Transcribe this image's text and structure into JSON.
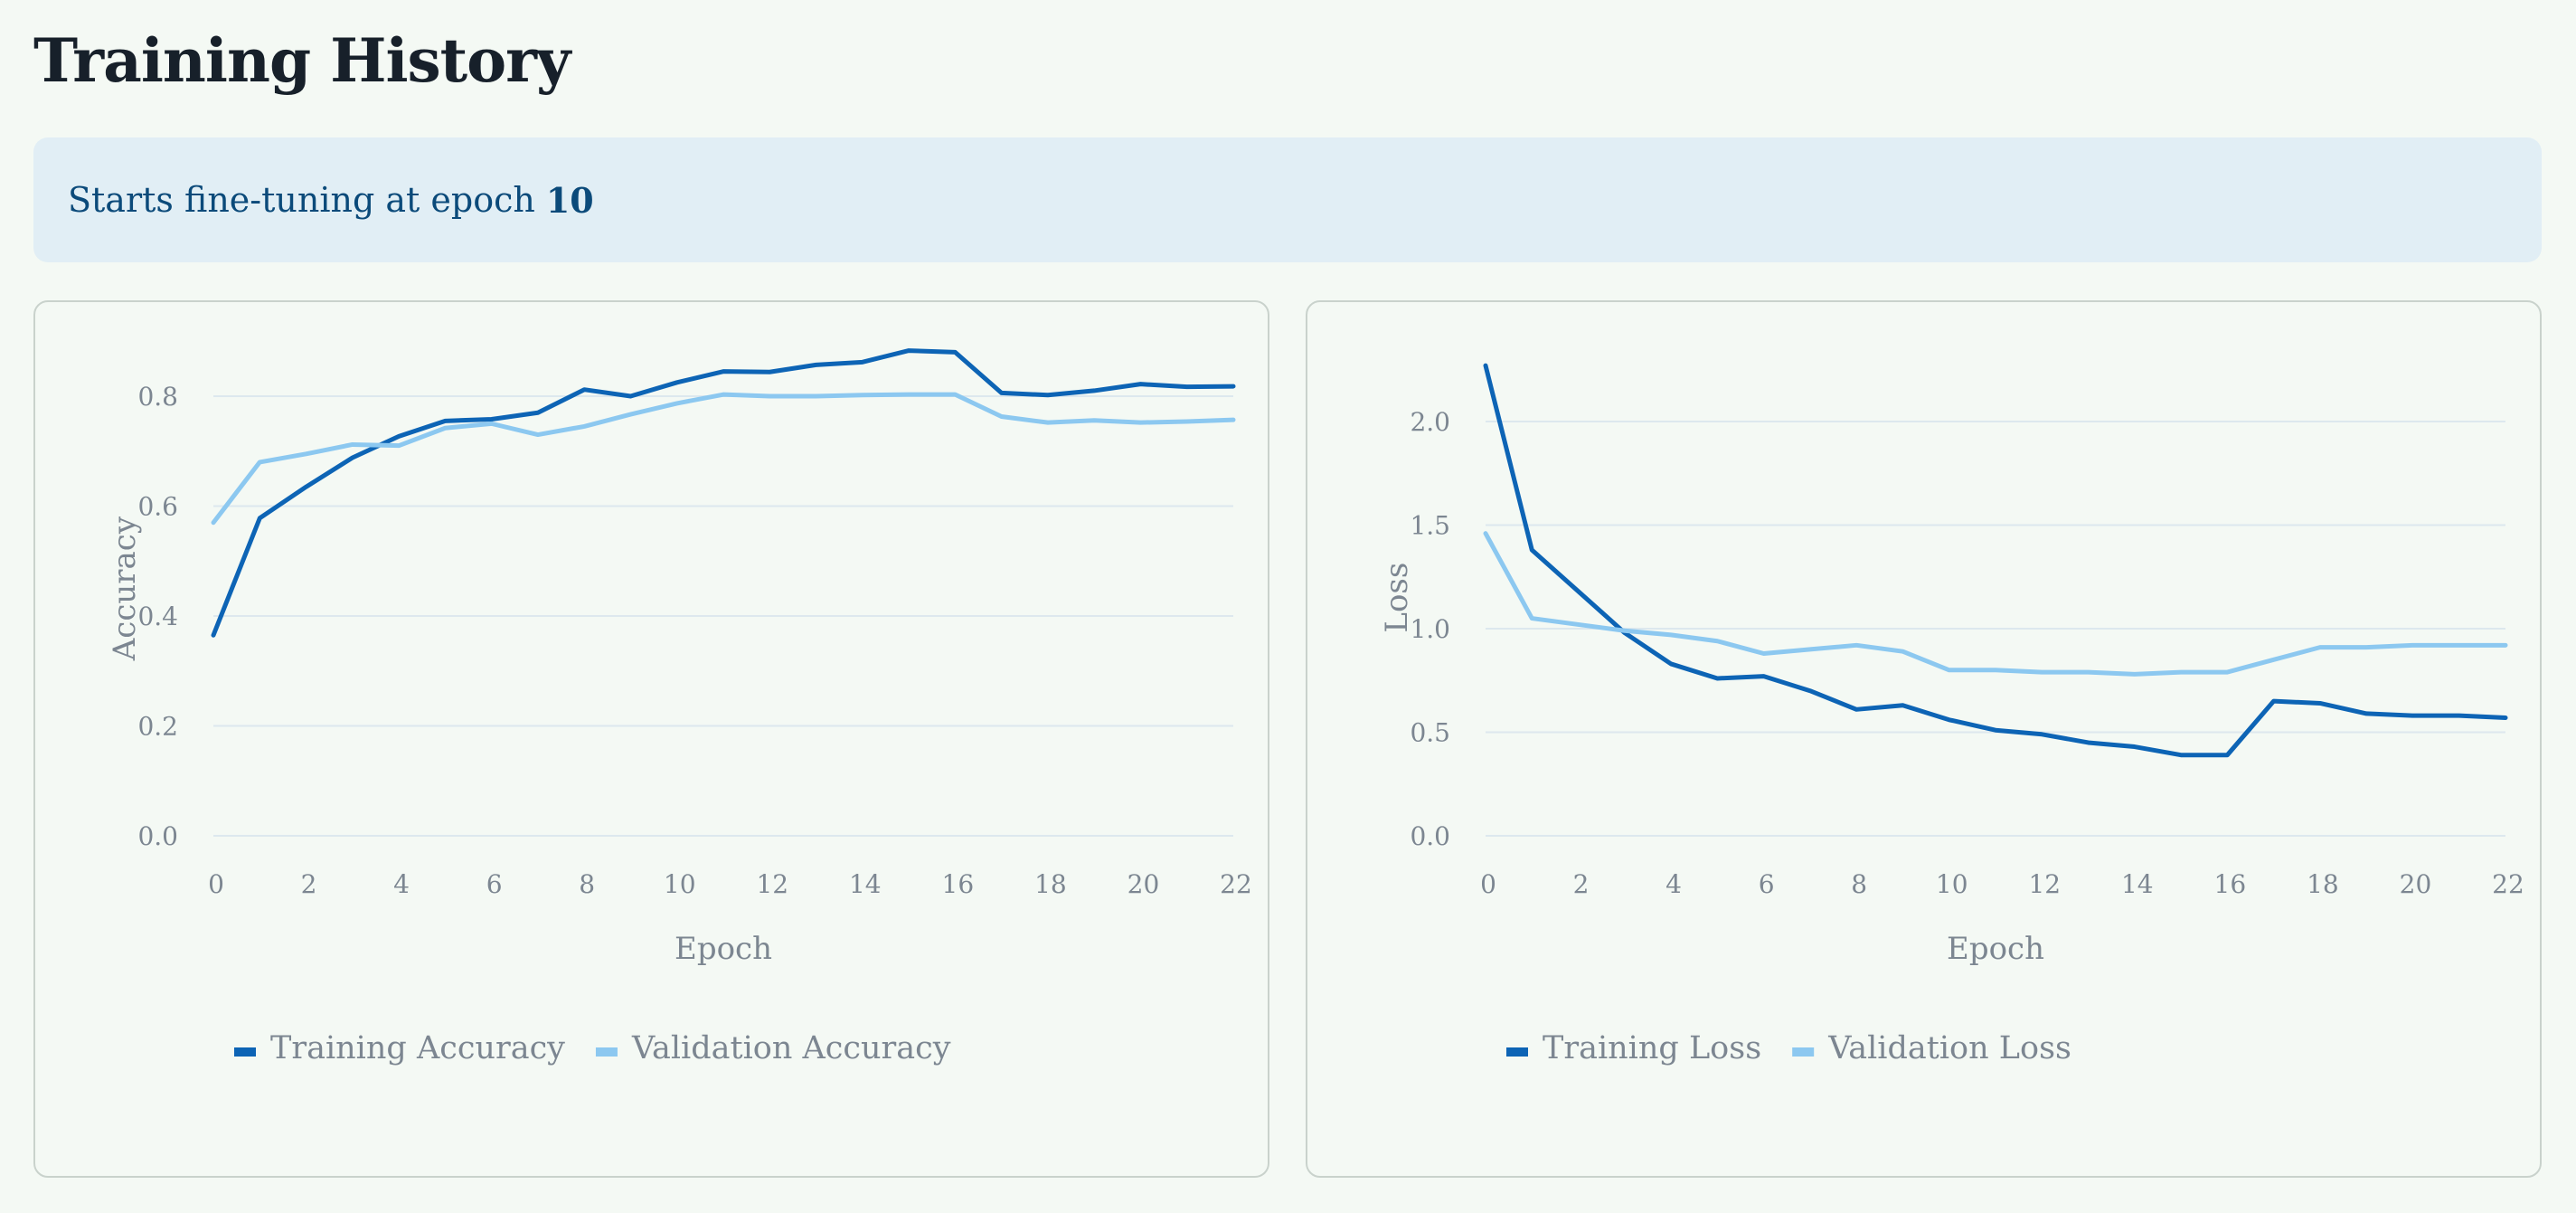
{
  "page": {
    "title": "Training History",
    "banner_prefix": "Starts fine-tuning at epoch",
    "banner_epoch": "10"
  },
  "colors": {
    "background": "#f4f9f4",
    "banner_bg": "#e1eef5",
    "banner_text": "#0b4a7a",
    "training": "#0d64b5",
    "validation": "#8cc8f0"
  },
  "chart_data": [
    {
      "type": "line",
      "xlabel": "Epoch",
      "ylabel": "Accuracy",
      "xlim": [
        0,
        22
      ],
      "ylim": [
        0,
        0.9
      ],
      "xticks": [
        0,
        2,
        4,
        6,
        8,
        10,
        12,
        14,
        16,
        18,
        20,
        22
      ],
      "yticks": [
        0.0,
        0.2,
        0.4,
        0.6,
        0.8
      ],
      "tick_labels_y": [
        "0.0",
        "0.2",
        "0.4",
        "0.6",
        "0.8"
      ],
      "grid": true,
      "legend": "bottom-left",
      "x": [
        0,
        1,
        2,
        3,
        4,
        5,
        6,
        7,
        8,
        9,
        10,
        11,
        12,
        13,
        14,
        15,
        16,
        17,
        18,
        19,
        20,
        21,
        22
      ],
      "series": [
        {
          "name": "Training Accuracy",
          "color": "#0d64b5",
          "values": [
            0.365,
            0.578,
            0.635,
            0.688,
            0.727,
            0.755,
            0.758,
            0.77,
            0.812,
            0.8,
            0.825,
            0.845,
            0.844,
            0.857,
            0.862,
            0.883,
            0.88,
            0.806,
            0.802,
            0.81,
            0.822,
            0.817,
            0.818
          ]
        },
        {
          "name": "Validation Accuracy",
          "color": "#8cc8f0",
          "values": [
            0.57,
            0.68,
            0.695,
            0.712,
            0.71,
            0.742,
            0.75,
            0.73,
            0.745,
            0.767,
            0.787,
            0.803,
            0.8,
            0.8,
            0.802,
            0.803,
            0.803,
            0.763,
            0.752,
            0.756,
            0.752,
            0.754,
            0.757
          ]
        }
      ]
    },
    {
      "type": "line",
      "xlabel": "Epoch",
      "ylabel": "Loss",
      "xlim": [
        0,
        22
      ],
      "ylim": [
        0,
        2.3
      ],
      "xticks": [
        0,
        2,
        4,
        6,
        8,
        10,
        12,
        14,
        16,
        18,
        20,
        22
      ],
      "yticks": [
        0.0,
        0.5,
        1.0,
        1.5,
        2.0
      ],
      "tick_labels_y": [
        "0.0",
        "0.5",
        "1.0",
        "1.5",
        "2.0"
      ],
      "grid": true,
      "legend": "bottom-left",
      "x": [
        0,
        1,
        2,
        3,
        4,
        5,
        6,
        7,
        8,
        9,
        10,
        11,
        12,
        13,
        14,
        15,
        16,
        17,
        18,
        19,
        20,
        21,
        22
      ],
      "series": [
        {
          "name": "Training Loss",
          "color": "#0d64b5",
          "values": [
            2.27,
            1.38,
            1.18,
            0.98,
            0.83,
            0.76,
            0.77,
            0.7,
            0.61,
            0.63,
            0.56,
            0.51,
            0.49,
            0.45,
            0.43,
            0.39,
            0.39,
            0.65,
            0.64,
            0.59,
            0.58,
            0.58,
            0.57
          ]
        },
        {
          "name": "Validation Loss",
          "color": "#8cc8f0",
          "values": [
            1.46,
            1.05,
            1.02,
            0.99,
            0.97,
            0.94,
            0.88,
            0.9,
            0.92,
            0.89,
            0.8,
            0.8,
            0.79,
            0.79,
            0.78,
            0.79,
            0.79,
            0.85,
            0.91,
            0.91,
            0.92,
            0.92,
            0.92
          ]
        }
      ]
    }
  ]
}
